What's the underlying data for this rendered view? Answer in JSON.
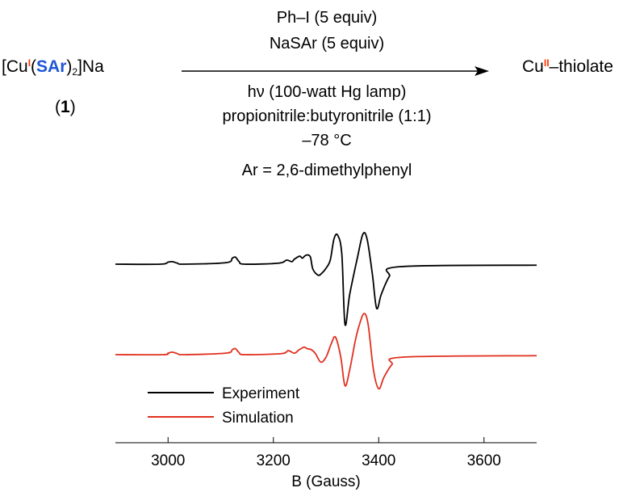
{
  "reaction": {
    "reactant": {
      "open": "[Cu",
      "cu_ox": "I",
      "paren_open": "(",
      "ligand": "SAr",
      "paren_close": ")",
      "sub2": "2",
      "tail": "]Na",
      "label_open": "(",
      "label_num": "1",
      "label_close": ")"
    },
    "above_arrow": [
      "Ph–I (5 equiv)",
      "NaSAr (5 equiv)"
    ],
    "below_arrow": [
      "hν (100-watt Hg lamp)",
      "propionitrile:butyronitrile (1:1)",
      "–78 °C",
      "Ar = 2,6-dimethylphenyl"
    ],
    "product": {
      "cu": "Cu",
      "ox": "II",
      "tail": "–thiolate"
    },
    "colors": {
      "oxidation_state": "#ff3300",
      "ligand": "#1f55d6"
    }
  },
  "chart_data": {
    "type": "line",
    "xlabel": "B (Gauss)",
    "xlim": [
      2900,
      3700
    ],
    "xticks": [
      3000,
      3200,
      3400,
      3600
    ],
    "legend_position": "lower-left",
    "grid": false,
    "series": [
      {
        "name": "Experiment",
        "color": "#000000",
        "offset": 1.0,
        "x": [
          2900,
          2985,
          3000,
          3008,
          3018,
          3030,
          3110,
          3122,
          3128,
          3135,
          3145,
          3210,
          3225,
          3235,
          3240,
          3250,
          3255,
          3262,
          3270,
          3275,
          3285,
          3292,
          3300,
          3308,
          3315,
          3322,
          3330,
          3336,
          3345,
          3360,
          3370,
          3378,
          3388,
          3396,
          3405,
          3420,
          3440,
          3700
        ],
        "y": [
          0,
          0,
          0.04,
          0.05,
          0.02,
          0,
          0.03,
          0.12,
          0.14,
          0.05,
          0,
          0.02,
          0.08,
          0.05,
          0.1,
          0.16,
          0.12,
          0.18,
          0.15,
          -0.1,
          -0.22,
          -0.18,
          -0.08,
          0.08,
          0.5,
          0.58,
          0.2,
          -1.2,
          -0.6,
          0.15,
          0.6,
          0.5,
          -0.2,
          -0.88,
          -0.6,
          -0.25,
          -0.05,
          -0.02
        ]
      },
      {
        "name": "Simulation",
        "color": "#e0301e",
        "offset": 0.0,
        "x": [
          2900,
          2990,
          3000,
          3008,
          3018,
          3030,
          3110,
          3122,
          3128,
          3135,
          3145,
          3215,
          3228,
          3240,
          3248,
          3258,
          3264,
          3272,
          3280,
          3290,
          3300,
          3310,
          3318,
          3328,
          3336,
          3345,
          3355,
          3362,
          3372,
          3380,
          3390,
          3400,
          3410,
          3425,
          3445,
          3700
        ],
        "y": [
          0,
          0,
          0.03,
          0.05,
          0.02,
          0,
          0.03,
          0.1,
          0.12,
          0.04,
          0,
          0.02,
          0.08,
          0.03,
          0.09,
          0.15,
          0.12,
          0.1,
          0.02,
          -0.15,
          -0.05,
          0.22,
          0.35,
          -0.05,
          -0.62,
          -0.3,
          0.25,
          0.55,
          0.82,
          0.6,
          -0.3,
          -0.68,
          -0.45,
          -0.2,
          -0.05,
          -0.02
        ]
      }
    ]
  }
}
